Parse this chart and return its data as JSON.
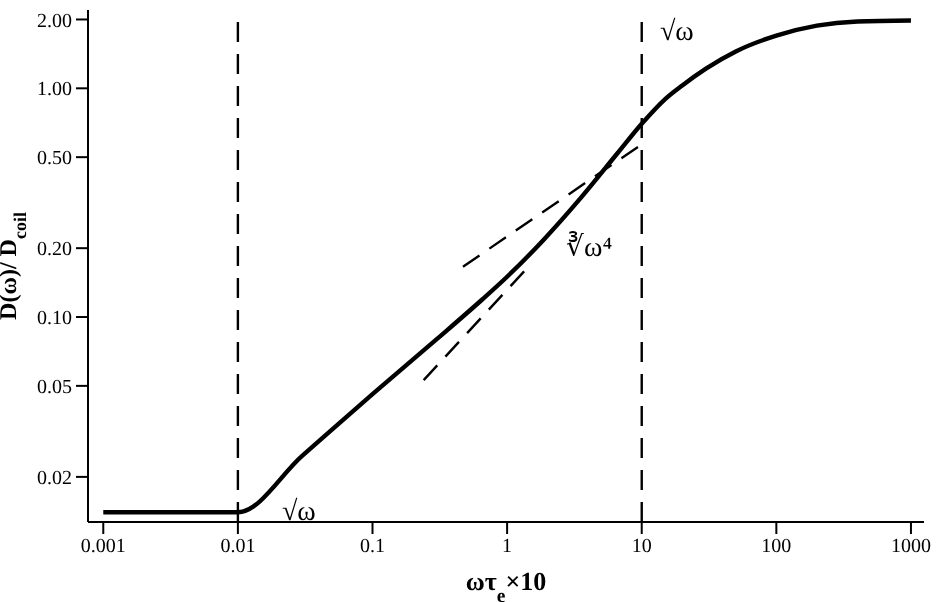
{
  "chart_data": {
    "type": "line",
    "xlabel": "ωτ$_{e}$×10",
    "ylabel": "D(ω)/ D$_{coil}$",
    "log": "xy",
    "xlim": [
      0.00077,
      1250
    ],
    "xticks": [
      0.001,
      0.01,
      0.1,
      1,
      10,
      100,
      1000
    ],
    "ylim": [
      0.0127,
      2.2
    ],
    "yticks": [
      {
        "value": 0.02,
        "label": "0.02"
      },
      {
        "value": 0.05,
        "label": "0.05"
      },
      {
        "value": 0.1,
        "label": "0.10"
      },
      {
        "value": 0.2,
        "label": "0.20"
      },
      {
        "value": 0.5,
        "label": "0.50"
      },
      {
        "value": 1,
        "label": "1.00"
      },
      {
        "value": 2,
        "label": "2.00"
      }
    ],
    "marker": "none",
    "series": [
      {
        "color": "#000000",
        "line_style": "solid",
        "x": [
          0.001,
          0.01,
          0.03,
          0.1,
          0.3,
          0.65,
          1,
          1.9,
          3.5,
          6.6,
          10,
          15,
          20,
          30,
          50,
          100,
          200,
          400,
          1000
        ],
        "values": [
          0.014,
          0.014,
          0.0247,
          0.046,
          0.08,
          0.119,
          0.15,
          0.22,
          0.33,
          0.52,
          0.7,
          0.9,
          1.03,
          1.22,
          1.45,
          1.7,
          1.88,
          1.96,
          1.98
        ]
      },
      {
        "type": "line",
        "color": "#000000",
        "line_style": "dashed",
        "x": [
          0.47,
          10.5
        ],
        "values": [
          0.166,
          0.58
        ]
      },
      {
        "type": "line",
        "color": "#000000",
        "line_style": "dashed",
        "x": [
          0.24,
          1.44
        ],
        "values": [
          0.053,
          0.166
        ]
      }
    ],
    "ref_lines": [
      {
        "axis": "x",
        "value": 0.01,
        "line_style": "dashed",
        "color": "#000000"
      },
      {
        "axis": "x",
        "value": 10,
        "line_style": "dashed",
        "color": "#000000"
      }
    ],
    "annotations": [
      "√ω",
      "∛ω⁴",
      "√ω"
    ]
  }
}
